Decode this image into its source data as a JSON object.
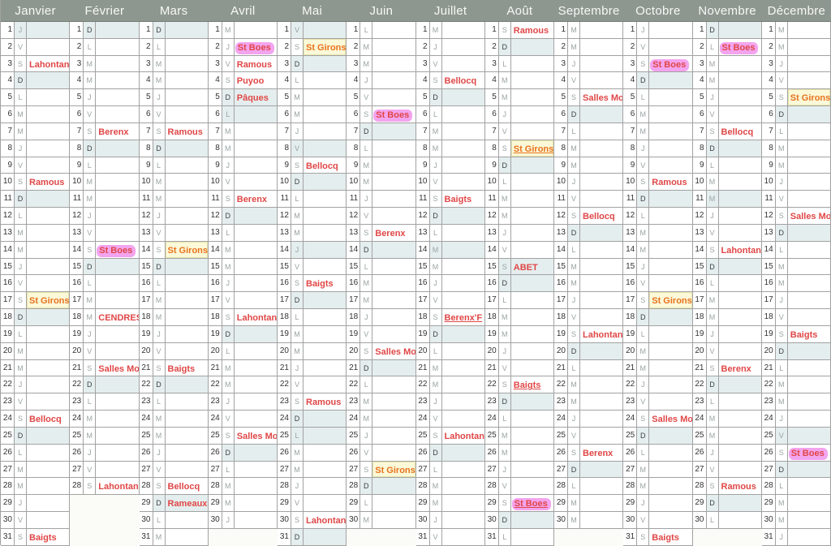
{
  "calendar": {
    "weekday_letters": {
      "monday": "L",
      "tuesday": "M",
      "wednesday": "M",
      "thursday": "J",
      "friday": "V",
      "saturday": "S",
      "sunday": "D"
    },
    "months": [
      {
        "name": "Janvier",
        "dow": "JVSDLMMJVSDLMMJVSDLMMJVSDLMMJVS",
        "holidays": [
          1
        ],
        "events": [
          {
            "day": 3,
            "label": "Lahontan",
            "style": []
          },
          {
            "day": 10,
            "label": "Ramous",
            "style": []
          },
          {
            "day": 17,
            "label": "St Girons",
            "style": [
              "yellow",
              "orange"
            ]
          },
          {
            "day": 24,
            "label": "Bellocq",
            "style": []
          },
          {
            "day": 31,
            "label": "Baigts",
            "style": []
          }
        ]
      },
      {
        "name": "Février",
        "dow": "DLMMJVSDLMMJVSDLMMJVSDLMMJVS",
        "holidays": [],
        "events": [
          {
            "day": 7,
            "label": "Berenx",
            "style": []
          },
          {
            "day": 14,
            "label": "St Boes",
            "style": [
              "pink"
            ]
          },
          {
            "day": 18,
            "label": "CENDRES",
            "style": []
          },
          {
            "day": 21,
            "label": "Salles Mon",
            "style": []
          },
          {
            "day": 28,
            "label": "Lahontan",
            "style": []
          }
        ]
      },
      {
        "name": "Mars",
        "dow": "DLMMJVSDLMMJVSDLMMJVSDLMMJVSDLM",
        "holidays": [],
        "events": [
          {
            "day": 7,
            "label": "Ramous",
            "style": []
          },
          {
            "day": 14,
            "label": "St Girons",
            "style": [
              "yellow",
              "orange"
            ]
          },
          {
            "day": 21,
            "label": "Baigts",
            "style": []
          },
          {
            "day": 28,
            "label": "Bellocq",
            "style": []
          },
          {
            "day": 29,
            "label": "Rameaux",
            "style": []
          }
        ]
      },
      {
        "name": "Avril",
        "dow": "MJVSDLMMJVSDLMMJVSDLMMJVSDLMMJ",
        "holidays": [
          6
        ],
        "events": [
          {
            "day": 2,
            "label": "St Boes",
            "style": [
              "pink"
            ]
          },
          {
            "day": 3,
            "label": "Ramous",
            "style": []
          },
          {
            "day": 4,
            "label": "Puyoo",
            "style": []
          },
          {
            "day": 5,
            "label": "Pâques",
            "style": []
          },
          {
            "day": 11,
            "label": "Berenx",
            "style": []
          },
          {
            "day": 18,
            "label": "Lahontan",
            "style": []
          },
          {
            "day": 25,
            "label": "Salles Mon",
            "style": []
          }
        ]
      },
      {
        "name": "Mai",
        "dow": "VSDLMMJVSDLMMJVSDLMMJVSDLMMJVSD",
        "holidays": [
          1,
          8,
          14,
          25
        ],
        "events": [
          {
            "day": 2,
            "label": "St Girons",
            "style": [
              "yellow",
              "orange"
            ]
          },
          {
            "day": 9,
            "label": "Bellocq",
            "style": []
          },
          {
            "day": 16,
            "label": "Baigts",
            "style": []
          },
          {
            "day": 23,
            "label": "Ramous",
            "style": []
          },
          {
            "day": 30,
            "label": "Lahontan",
            "style": []
          }
        ]
      },
      {
        "name": "Juin",
        "dow": "LMMJVSDLMMJVSDLMMJVSDLMMJVSDLM",
        "holidays": [],
        "events": [
          {
            "day": 6,
            "label": "St Boes",
            "style": [
              "pink"
            ]
          },
          {
            "day": 13,
            "label": "Berenx",
            "style": []
          },
          {
            "day": 20,
            "label": "Salles Mon",
            "style": []
          },
          {
            "day": 27,
            "label": "St Girons",
            "style": [
              "yellow",
              "orange"
            ]
          }
        ]
      },
      {
        "name": "Juillet",
        "dow": "MJVSDLMMJVSDLMMJVSDLMMJVSDLMMJV",
        "holidays": [
          14
        ],
        "events": [
          {
            "day": 4,
            "label": "Bellocq",
            "style": []
          },
          {
            "day": 11,
            "label": "Baigts",
            "style": []
          },
          {
            "day": 18,
            "label": "Berenx'F",
            "style": [
              "u"
            ]
          },
          {
            "day": 25,
            "label": "Lahontan",
            "style": []
          }
        ]
      },
      {
        "name": "Août",
        "dow": "SDLMMJVSDLMMJVSDLMMJVSDLMMJVSDL",
        "holidays": [
          15
        ],
        "events": [
          {
            "day": 1,
            "label": "Ramous",
            "style": []
          },
          {
            "day": 8,
            "label": "St Girons",
            "style": [
              "yellow",
              "orange",
              "u"
            ]
          },
          {
            "day": 15,
            "label": "ABET",
            "style": []
          },
          {
            "day": 22,
            "label": "Baigts",
            "style": [
              "u"
            ]
          },
          {
            "day": 29,
            "label": "St Boes",
            "style": [
              "pink",
              "u"
            ]
          }
        ]
      },
      {
        "name": "Septembre",
        "dow": "MMJVSDLMMJVSDLMMJVSDLMMJVSDLMM",
        "holidays": [],
        "events": [
          {
            "day": 5,
            "label": "Salles Mon",
            "style": []
          },
          {
            "day": 12,
            "label": "Bellocq",
            "style": []
          },
          {
            "day": 19,
            "label": "Lahontan",
            "style": []
          },
          {
            "day": 26,
            "label": "Berenx",
            "style": []
          }
        ]
      },
      {
        "name": "Octobre",
        "dow": "JVSDLMMJVSDLMMJVSDLMMJVSDLMMJVS",
        "holidays": [],
        "events": [
          {
            "day": 3,
            "label": "St Boes",
            "style": [
              "pink"
            ]
          },
          {
            "day": 10,
            "label": "Ramous",
            "style": []
          },
          {
            "day": 17,
            "label": "St Girons",
            "style": [
              "yellow",
              "orange"
            ]
          },
          {
            "day": 24,
            "label": "Salles Mon",
            "style": []
          },
          {
            "day": 31,
            "label": "Baigts",
            "style": []
          }
        ]
      },
      {
        "name": "Novembre",
        "dow": "DLMMJVSDLMMJVSDLMMJVSDLMMJVSDL",
        "holidays": [
          11
        ],
        "events": [
          {
            "day": 2,
            "label": "St Boes",
            "style": [
              "pink"
            ]
          },
          {
            "day": 7,
            "label": "Bellocq",
            "style": []
          },
          {
            "day": 14,
            "label": "Lahontan",
            "style": []
          },
          {
            "day": 21,
            "label": "Berenx",
            "style": []
          },
          {
            "day": 28,
            "label": "Ramous",
            "style": []
          }
        ]
      },
      {
        "name": "Décembre",
        "dow": "MMJVSDLMMJVSDLMMJVSDLMMJVSDLMMJ",
        "holidays": [
          25
        ],
        "events": [
          {
            "day": 5,
            "label": "St Girons",
            "style": [
              "yellow",
              "orange"
            ]
          },
          {
            "day": 12,
            "label": "Salles Mon",
            "style": []
          },
          {
            "day": 19,
            "label": "Baigts",
            "style": []
          },
          {
            "day": 26,
            "label": "St Boes",
            "style": [
              "pink"
            ]
          }
        ]
      }
    ],
    "colors": {
      "header_bg": "#8e978f",
      "header_text": "#f7f8f5",
      "grid_line": "#a2a2a2",
      "event_red": "#e04747",
      "st_girons_orange": "#e8721e",
      "highlight_pink": "#f3a4ee",
      "highlight_yellow": "#fbf9d8",
      "sunday_holiday_row": "#e5eeee"
    }
  }
}
